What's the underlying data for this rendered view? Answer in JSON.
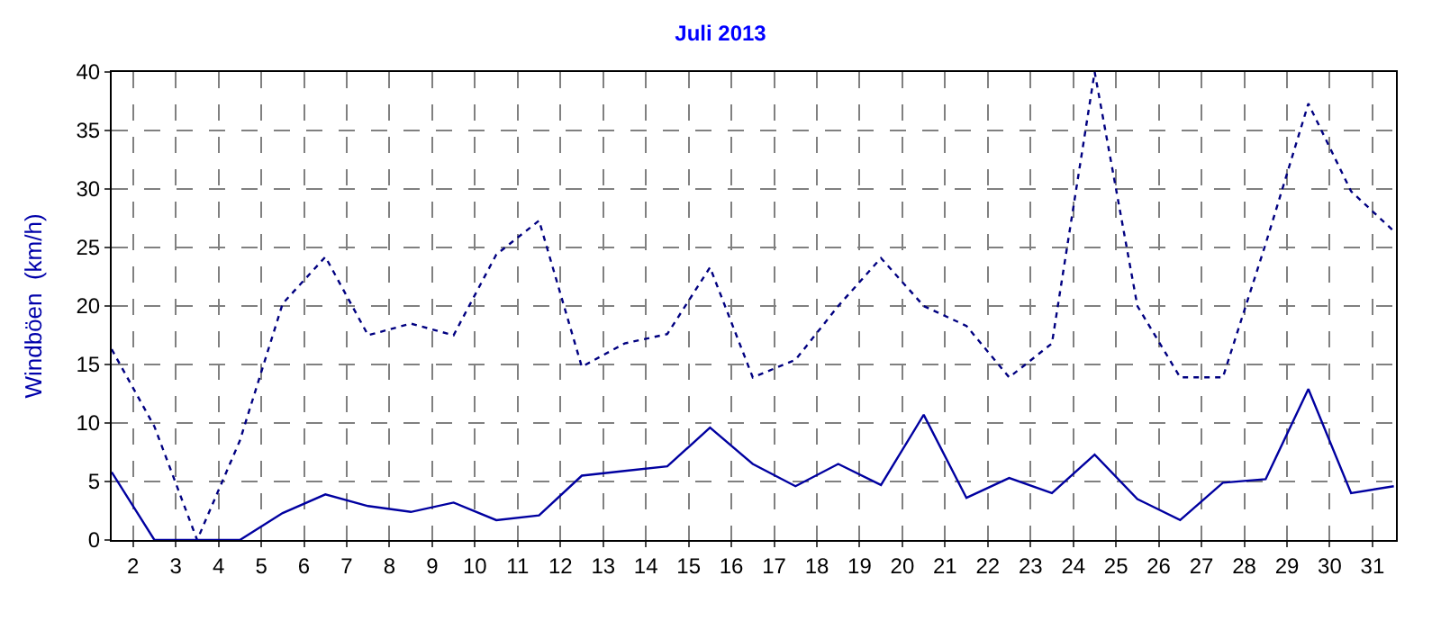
{
  "chart_data": {
    "type": "line",
    "title": "Juli 2013",
    "ylabel": "Windböen  (km/h)",
    "x": [
      1.5,
      2.5,
      3.5,
      4.5,
      5.5,
      6.5,
      7.5,
      8.5,
      9.5,
      10.5,
      11.5,
      12.5,
      13.5,
      14.5,
      15.5,
      16.5,
      17.5,
      18.5,
      19.5,
      20.5,
      21.5,
      22.5,
      23.5,
      24.5,
      25.5,
      26.5,
      27.5,
      28.5,
      29.5,
      30.5,
      31.5
    ],
    "series": [
      {
        "color": "#000080",
        "line_style": "dotted",
        "values": [
          16.3,
          9.7,
          0,
          8.5,
          20.2,
          24.2,
          17.5,
          18.5,
          17.5,
          24.4,
          27.3,
          14.8,
          16.8,
          17.6,
          23.3,
          13.9,
          15.4,
          20,
          24.1,
          20,
          18.3,
          13.9,
          16.8,
          40,
          20,
          13.9,
          13.9,
          25.3,
          37.3,
          29.8,
          26.4
        ]
      },
      {
        "color": "#0000a0",
        "line_style": "solid",
        "values": [
          5.8,
          0,
          0,
          0,
          2.3,
          3.9,
          2.9,
          2.4,
          3.2,
          1.7,
          2.1,
          5.5,
          5.9,
          6.3,
          9.6,
          6.5,
          4.6,
          6.5,
          4.7,
          10.7,
          3.6,
          5.3,
          4,
          7.3,
          3.5,
          1.7,
          4.9,
          5.2,
          12.9,
          4,
          4.6
        ]
      }
    ],
    "xlim": [
      1.5,
      31.55
    ],
    "xticks": [
      2,
      3,
      4,
      5,
      6,
      7,
      8,
      9,
      10,
      11,
      12,
      13,
      14,
      15,
      16,
      17,
      18,
      19,
      20,
      21,
      22,
      23,
      24,
      25,
      26,
      27,
      28,
      29,
      30,
      31
    ],
    "ylim": [
      0,
      40
    ],
    "yticks": [
      0,
      5,
      10,
      15,
      20,
      25,
      30,
      35,
      40
    ],
    "grid": true,
    "marker": "none"
  }
}
